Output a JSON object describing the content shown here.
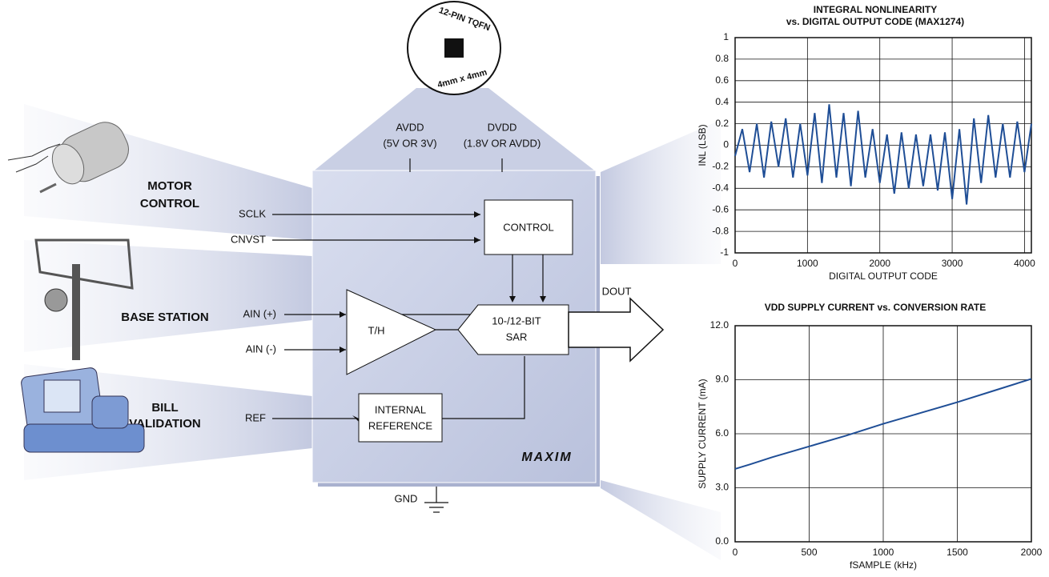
{
  "diagram": {
    "package_top": "12-PIN TQFN",
    "package_bottom": "4mm x 4mm",
    "avdd": "AVDD",
    "avdd_note": "(5V OR 3V)",
    "dvdd": "DVDD",
    "dvdd_note": "(1.8V OR AVDD)",
    "sclk": "SCLK",
    "cnvst": "CNVST",
    "ain_pos": "AIN (+)",
    "ain_neg": "AIN (-)",
    "ref": "REF",
    "gnd": "GND",
    "dout": "DOUT",
    "control": "CONTROL",
    "th": "T/H",
    "sar_1": "10-/12-BIT",
    "sar_2": "SAR",
    "ref_block_1": "INTERNAL",
    "ref_block_2": "REFERENCE",
    "logo": "MAXIM",
    "app_motor_1": "MOTOR",
    "app_motor_2": "CONTROL",
    "app_base": "BASE STATION",
    "app_bill_1": "BILL",
    "app_bill_2": "VALIDATION"
  },
  "chart_data": [
    {
      "type": "line",
      "title": "INTEGRAL NONLINEARITY",
      "subtitle": "vs. DIGITAL OUTPUT CODE (MAX1274)",
      "xlabel": "DIGITAL OUTPUT CODE",
      "ylabel": "INL (LSB)",
      "color": "#1f4e96",
      "grid": true,
      "x": [
        0,
        100,
        200,
        300,
        400,
        500,
        600,
        700,
        800,
        900,
        1000,
        1100,
        1200,
        1300,
        1400,
        1500,
        1600,
        1700,
        1800,
        1900,
        2000,
        2100,
        2200,
        2300,
        2400,
        2500,
        2600,
        2700,
        2800,
        2900,
        3000,
        3100,
        3200,
        3300,
        3400,
        3500,
        3600,
        3700,
        3800,
        3900,
        4000,
        4095
      ],
      "values": [
        -0.1,
        0.15,
        -0.25,
        0.2,
        -0.3,
        0.22,
        -0.2,
        0.25,
        -0.3,
        0.2,
        -0.28,
        0.3,
        -0.35,
        0.38,
        -0.3,
        0.3,
        -0.38,
        0.32,
        -0.3,
        0.15,
        -0.35,
        0.1,
        -0.45,
        0.12,
        -0.4,
        0.1,
        -0.38,
        0.1,
        -0.42,
        0.12,
        -0.5,
        0.15,
        -0.55,
        0.25,
        -0.35,
        0.28,
        -0.3,
        0.2,
        -0.3,
        0.22,
        -0.25,
        0.2
      ],
      "xlim": [
        0,
        4095
      ],
      "xticks": [
        0,
        1000,
        2000,
        3000,
        4000
      ],
      "ylim": [
        -1,
        1
      ],
      "yticks": [
        1,
        0.8,
        0.6,
        0.4,
        0.2,
        0,
        -0.2,
        -0.4,
        -0.6,
        -0.8,
        -1
      ]
    },
    {
      "type": "line",
      "title": "VDD SUPPLY CURRENT vs. CONVERSION RATE",
      "xlabel": "fSAMPLE (kHz)",
      "ylabel": "SUPPLY CURRENT (mA)",
      "color": "#1f4e96",
      "grid": true,
      "x": [
        0,
        100,
        250,
        500,
        750,
        1000,
        1250,
        1500,
        1750,
        2000
      ],
      "values": [
        4.05,
        4.3,
        4.7,
        5.3,
        5.9,
        6.55,
        7.15,
        7.75,
        8.4,
        9.05
      ],
      "xlim": [
        0,
        2000
      ],
      "xticks": [
        0,
        500,
        1000,
        1500,
        2000
      ],
      "ylim": [
        0,
        12
      ],
      "yticks": [
        {
          "value": 0,
          "label": "0.0"
        },
        {
          "value": 3,
          "label": "3.0"
        },
        {
          "value": 6,
          "label": "6.0"
        },
        {
          "value": 9,
          "label": "9.0"
        },
        {
          "value": 12,
          "label": "12.0"
        }
      ]
    }
  ]
}
